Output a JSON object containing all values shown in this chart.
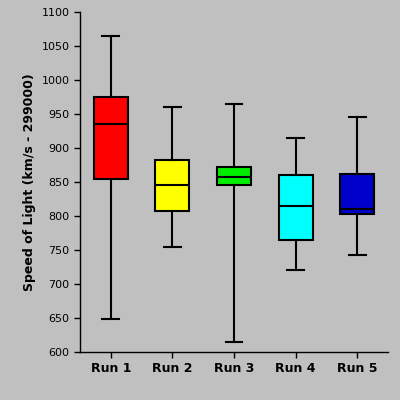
{
  "title": "",
  "ylabel": "Speed of Light (km/s - 299000)",
  "xlabel": "",
  "categories": [
    "Run 1",
    "Run 2",
    "Run 3",
    "Run 4",
    "Run 5"
  ],
  "box_data": [
    {
      "whislo": 648,
      "q1": 855,
      "med": 935,
      "q3": 975,
      "whishi": 1065
    },
    {
      "whislo": 755,
      "q1": 808,
      "med": 845,
      "q3": 882,
      "whishi": 960
    },
    {
      "whislo": 615,
      "q1": 845,
      "med": 858,
      "q3": 872,
      "whishi": 965
    },
    {
      "whislo": 720,
      "q1": 765,
      "med": 815,
      "q3": 860,
      "whishi": 915
    },
    {
      "whislo": 742,
      "q1": 803,
      "med": 811,
      "q3": 862,
      "whishi": 945
    }
  ],
  "box_colors": [
    "#ff0000",
    "#ffff00",
    "#00ee00",
    "#00ffff",
    "#0000cc"
  ],
  "ylim": [
    600,
    1100
  ],
  "yticks": [
    600,
    650,
    700,
    750,
    800,
    850,
    900,
    950,
    1000,
    1050,
    1100
  ],
  "background_color": "#c0c0c0",
  "linewidth": 1.5,
  "box_width": 0.55,
  "label_fontsize": 9,
  "tick_fontsize": 8,
  "ylabel_fontsize": 9
}
